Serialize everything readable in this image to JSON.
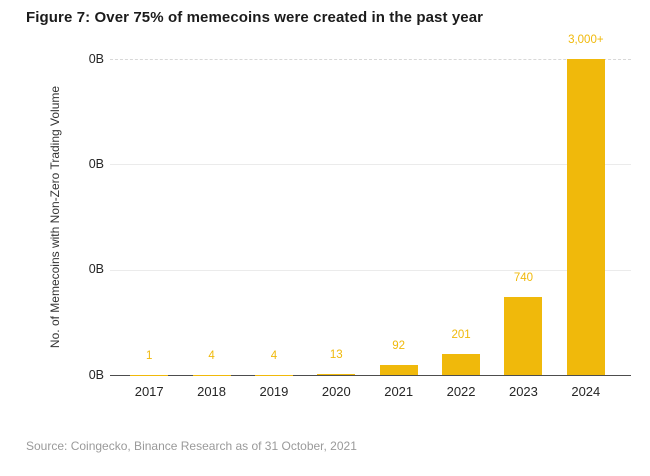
{
  "figure": {
    "title": "Figure 7: Over 75% of memecoins were created in the past year",
    "source": "Source: Coingecko, Binance Research as of 31 October, 2021"
  },
  "chart_data": {
    "type": "bar",
    "title": "Figure 7: Over 75% of memecoins were created in the past year",
    "categories": [
      "2017",
      "2018",
      "2019",
      "2020",
      "2021",
      "2022",
      "2023",
      "2024"
    ],
    "values": [
      1,
      4,
      4,
      13,
      92,
      201,
      740,
      3000
    ],
    "bar_labels": [
      "1",
      "4",
      "4",
      "13",
      "92",
      "201",
      "740",
      "3,000+"
    ],
    "xlabel": "",
    "ylabel": "No. of Memecoins with Non-Zero Trading Volume",
    "y_tick_labels": [
      "0B",
      "0B",
      "0B",
      "0B"
    ],
    "ylim": [
      0,
      3000
    ],
    "grid": true,
    "legend": "none",
    "bar_color": "#F0B90B",
    "value_label_color": "#F0B90B",
    "source": "Source: Coingecko, Binance Research as of 31 October, 2021"
  }
}
